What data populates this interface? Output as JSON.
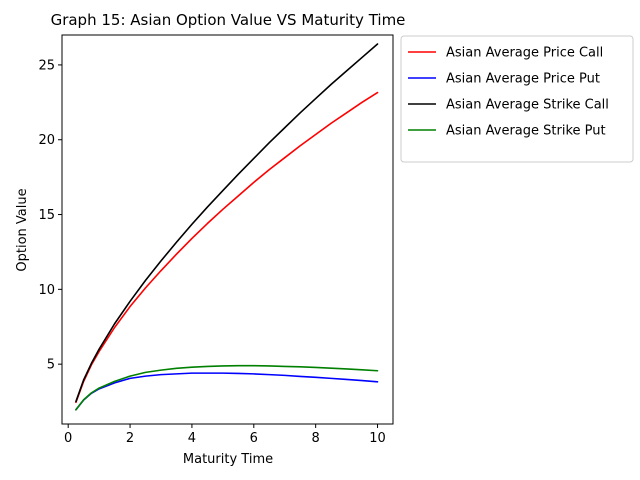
{
  "chart_data": {
    "type": "line",
    "title": "Graph 15: Asian Option Value VS Maturity Time",
    "xlabel": "Maturity Time",
    "ylabel": "Option Value",
    "xlim": [
      -0.2,
      10.5
    ],
    "ylim": [
      1.0,
      27.0
    ],
    "xticks": [
      0,
      2,
      4,
      6,
      8,
      10
    ],
    "yticks": [
      5,
      10,
      15,
      20,
      25
    ],
    "grid": false,
    "legend_position": "outside-upper-right",
    "x": [
      0.25,
      0.5,
      0.75,
      1,
      1.5,
      2,
      2.5,
      3,
      3.5,
      4,
      4.5,
      5,
      5.5,
      6,
      6.5,
      7,
      7.5,
      8,
      8.5,
      9,
      9.5,
      10
    ],
    "series": [
      {
        "name": "Asian Average Price Call",
        "color": "#ff0000",
        "values": [
          2.45,
          3.85,
          4.95,
          5.85,
          7.45,
          8.85,
          10.1,
          11.25,
          12.35,
          13.4,
          14.4,
          15.35,
          16.25,
          17.15,
          18.0,
          18.8,
          19.6,
          20.35,
          21.1,
          21.8,
          22.5,
          23.15
        ]
      },
      {
        "name": "Asian Average Price Put",
        "color": "#0000ff",
        "values": [
          1.95,
          2.6,
          3.05,
          3.35,
          3.75,
          4.05,
          4.2,
          4.3,
          4.35,
          4.4,
          4.4,
          4.4,
          4.38,
          4.35,
          4.3,
          4.25,
          4.18,
          4.12,
          4.05,
          3.98,
          3.9,
          3.82
        ]
      },
      {
        "name": "Asian Average Strike Call",
        "color": "#000000",
        "values": [
          2.5,
          3.95,
          5.05,
          6.0,
          7.7,
          9.2,
          10.6,
          11.9,
          13.15,
          14.35,
          15.5,
          16.6,
          17.7,
          18.75,
          19.8,
          20.8,
          21.8,
          22.75,
          23.7,
          24.6,
          25.5,
          26.4
        ]
      },
      {
        "name": "Asian Average Strike Put",
        "color": "#008000",
        "values": [
          1.95,
          2.62,
          3.08,
          3.4,
          3.85,
          4.2,
          4.45,
          4.6,
          4.72,
          4.8,
          4.85,
          4.88,
          4.9,
          4.9,
          4.88,
          4.85,
          4.82,
          4.78,
          4.73,
          4.68,
          4.62,
          4.56
        ]
      }
    ]
  }
}
